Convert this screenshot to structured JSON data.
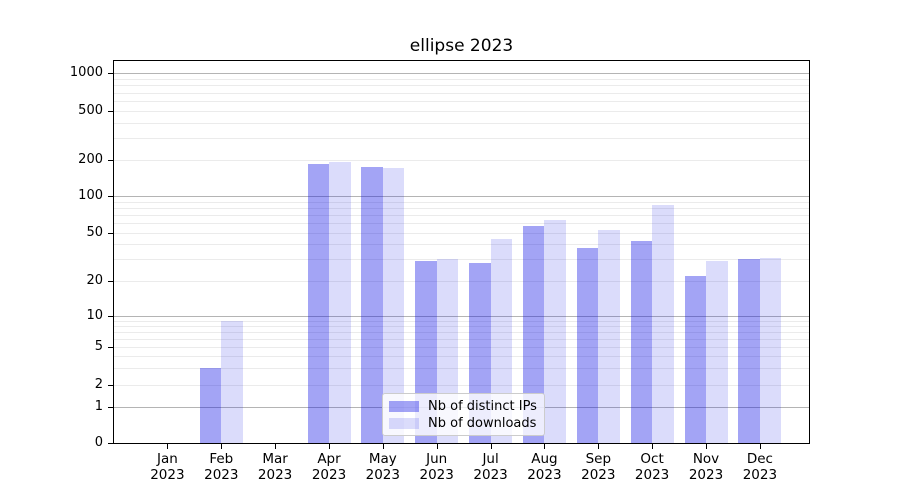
{
  "chart_data": {
    "type": "bar",
    "title": "ellipse 2023",
    "xlabel": "",
    "ylabel": "",
    "y_scale": "symlog",
    "y_ticks": [
      0,
      1,
      2,
      5,
      10,
      20,
      50,
      100,
      200,
      500,
      1000
    ],
    "ylim": [
      0,
      1200
    ],
    "grid": true,
    "legend_position": "lower center inside",
    "categories": [
      "Jan",
      "Feb",
      "Mar",
      "Apr",
      "May",
      "Jun",
      "Jul",
      "Aug",
      "Sep",
      "Oct",
      "Nov",
      "Dec"
    ],
    "category_year": "2023",
    "series": [
      {
        "name": "Nb of distinct IPs",
        "color": "rgba(13,17,230,0.38)",
        "values": [
          0,
          3,
          0,
          186,
          174,
          29,
          28,
          57,
          37,
          43,
          22,
          30
        ]
      },
      {
        "name": "Nb of downloads",
        "color": "rgba(13,17,230,0.15)",
        "values": [
          0,
          9,
          0,
          194,
          172,
          30,
          44,
          64,
          53,
          85,
          29,
          31
        ]
      }
    ]
  }
}
